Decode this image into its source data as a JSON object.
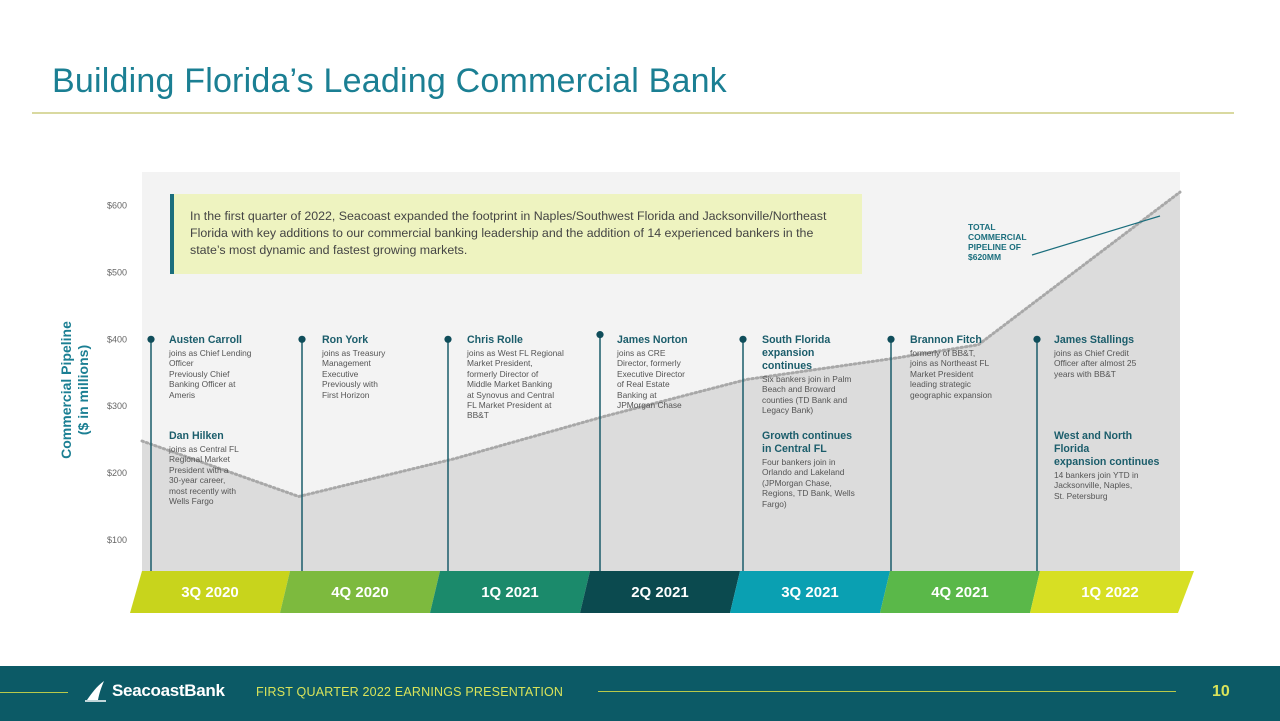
{
  "page": {
    "title": "Building Florida’s Leading Commercial Bank",
    "callout": "In the first quarter of 2022, Seacoast expanded the footprint in Naples/Southwest Florida and Jacksonville/Northeast Florida with key additions to our commercial banking leadership and the addition of 14 experienced bankers in the state’s most dynamic and fastest growing markets.",
    "total_label": "TOTAL\nCOMMERCIAL\nPIPELINE OF\n$620MM"
  },
  "chart_data": {
    "type": "area",
    "ylabel_line1": "Commercial Pipeline",
    "ylabel_line2": "($ in millions)",
    "ylim": [
      50,
      620
    ],
    "y_ticks": [
      100,
      200,
      300,
      400,
      500,
      600
    ],
    "y_tick_labels": [
      "$100",
      "$200",
      "$300",
      "$400",
      "$500",
      "$600"
    ],
    "pipeline": [
      {
        "x": 0.0,
        "y": 248
      },
      {
        "x": 1.05,
        "y": 165
      },
      {
        "x": 2.1,
        "y": 222
      },
      {
        "x": 3.1,
        "y": 285
      },
      {
        "x": 4.05,
        "y": 340
      },
      {
        "x": 5.05,
        "y": 372
      },
      {
        "x": 5.6,
        "y": 392
      },
      {
        "x": 6.95,
        "y": 620
      }
    ],
    "quarters": [
      {
        "label": "3Q 2020",
        "color": "#c8d41c"
      },
      {
        "label": "4Q 2020",
        "color": "#7dba3e"
      },
      {
        "label": "1Q 2021",
        "color": "#1b8a6b"
      },
      {
        "label": "2Q 2021",
        "color": "#0b4a4f"
      },
      {
        "label": "3Q 2021",
        "color": "#0aa0b2"
      },
      {
        "label": "4Q 2021",
        "color": "#5ab849"
      },
      {
        "label": "1Q 2022",
        "color": "#d7df23"
      }
    ],
    "markers": [
      {
        "x": 0.05,
        "y": 400
      },
      {
        "x": 1.05,
        "y": 400
      },
      {
        "x": 2.05,
        "y": 400
      },
      {
        "x": 3.05,
        "y": 407
      },
      {
        "x": 4.05,
        "y": 400
      },
      {
        "x": 5.05,
        "y": 400
      },
      {
        "x": 6.05,
        "y": 400
      }
    ],
    "events": [
      {
        "name": "Austen Carroll",
        "desc": "joins as Chief Lending\nOfficer\nPreviously Chief\nBanking Officer at\nAmeris"
      },
      {
        "name": "Dan Hilken",
        "desc": "joins as Central FL\nRegional Market\nPresident with a\n30-year career,\nmost recently with\nWells Fargo"
      },
      {
        "name": "Ron York",
        "desc": "joins as Treasury\nManagement\nExecutive\nPreviously with\nFirst Horizon"
      },
      {
        "name": "Chris Rolle",
        "desc": "joins as West FL Regional\nMarket President,\nformerly Director of\nMiddle Market Banking\nat Synovus and Central\nFL Market President at\nBB&T"
      },
      {
        "name": "James Norton",
        "desc": "joins as CRE\nDirector, formerly\nExecutive Director\nof Real Estate\nBanking at\nJPMorgan Chase"
      },
      {
        "name": "South Florida\nexpansion\ncontinues",
        "desc": "Six bankers join in Palm\nBeach and Broward\ncounties (TD Bank and\nLegacy Bank)"
      },
      {
        "name": "Growth continues\nin Central FL",
        "desc": "Four bankers join in\nOrlando and Lakeland\n(JPMorgan Chase,\nRegions, TD Bank, Wells\nFargo)"
      },
      {
        "name": "Brannon Fitch",
        "desc": "formerly of BB&T,\njoins as Northeast FL\nMarket President\nleading strategic\ngeographic expansion"
      },
      {
        "name": "James Stallings",
        "desc": "joins as Chief Credit\nOfficer after almost 25\nyears with BB&T"
      },
      {
        "name": "West and North\nFlorida\nexpansion continues",
        "desc": "14 bankers join YTD in\nJacksonville, Naples,\nSt. Petersburg"
      }
    ]
  },
  "footer": {
    "logo_text": "SeacoastBank",
    "presentation_label": "FIRST QUARTER 2022 EARNINGS PRESENTATION",
    "page_number": "10"
  },
  "colors": {
    "accent": "#1b7f93",
    "footer_bg": "#0c5a66",
    "footer_text": "#d9e35a"
  }
}
